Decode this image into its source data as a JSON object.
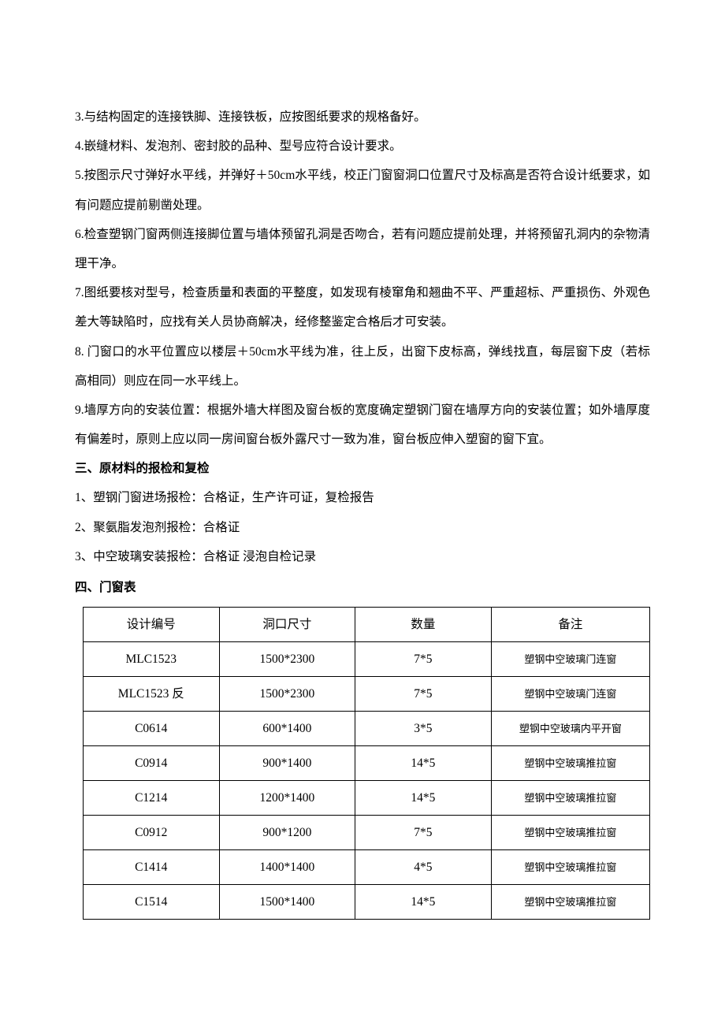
{
  "paragraphs": [
    "3.与结构固定的连接铁脚、连接铁板，应按图纸要求的规格备好。",
    "4.嵌缝材料、发泡剂、密封胶的品种、型号应符合设计要求。",
    "5.按图示尺寸弹好水平线，并弹好＋50cm水平线，校正门窗窗洞口位置尺寸及标高是否符合设计纸要求，如有问题应提前剔凿处理。",
    "6.检查塑钢门窗两侧连接脚位置与墙体预留孔洞是否吻合，若有问题应提前处理，并将预留孔洞内的杂物清理干净。",
    "7.图纸要核对型号，检查质量和表面的平整度，如发现有棱窜角和翘曲不平、严重超标、严重损伤、外观色差大等缺陷时，应找有关人员协商解决，经修整鉴定合格后才可安装。",
    "8. 门窗口的水平位置应以楼层＋50cm水平线为准，往上反，出窗下皮标高，弹线找直，每层窗下皮（若标高相同）则应在同一水平线上。",
    "9.墙厚方向的安装位置：根据外墙大样图及窗台板的宽度确定塑钢门窗在墙厚方向的安装位置；如外墙厚度有偏差时，原则上应以同一房间窗台板外露尺寸一致为准，窗台板应伸入塑窗的窗下宜。"
  ],
  "section3": {
    "header": "三、原材料的报检和复检",
    "items": [
      "1、塑钢门窗进场报检：合格证，生产许可证，复检报告",
      "2、聚氨脂发泡剂报检：合格证",
      "3、中空玻璃安装报检：合格证  浸泡自检记录"
    ]
  },
  "section4": {
    "header": "四、门窗表",
    "table": {
      "headers": [
        "设计编号",
        "洞口尺寸",
        "数量",
        "备注"
      ],
      "rows": [
        [
          "MLC1523",
          "1500*2300",
          "7*5",
          "塑钢中空玻璃门连窗"
        ],
        [
          "MLC1523 反",
          "1500*2300",
          "7*5",
          "塑钢中空玻璃门连窗"
        ],
        [
          "C0614",
          "600*1400",
          "3*5",
          "塑钢中空玻璃内平开窗"
        ],
        [
          "C0914",
          "900*1400",
          "14*5",
          "塑钢中空玻璃推拉窗"
        ],
        [
          "C1214",
          "1200*1400",
          "14*5",
          "塑钢中空玻璃推拉窗"
        ],
        [
          "C0912",
          "900*1200",
          "7*5",
          "塑钢中空玻璃推拉窗"
        ],
        [
          "C1414",
          "1400*1400",
          "4*5",
          "塑钢中空玻璃推拉窗"
        ],
        [
          "C1514",
          "1500*1400",
          "14*5",
          "塑钢中空玻璃推拉窗"
        ]
      ]
    }
  }
}
